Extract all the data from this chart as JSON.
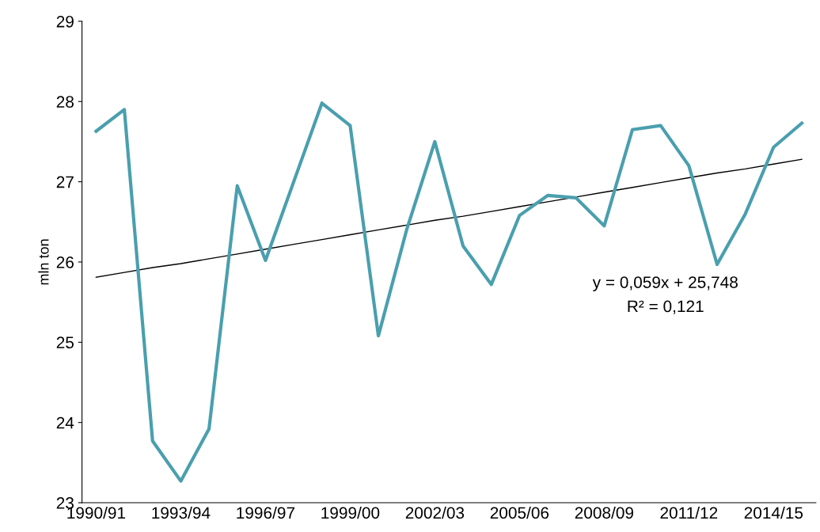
{
  "chart_data": {
    "type": "line",
    "ylabel": "mln ton",
    "categories": [
      "1990/91",
      null,
      null,
      "1993/94",
      null,
      null,
      "1996/97",
      null,
      null,
      "1999/00",
      null,
      null,
      "2002/03",
      null,
      null,
      "2005/06",
      null,
      null,
      "2008/09",
      null,
      null,
      "2011/12",
      null,
      null,
      "2014/15",
      null
    ],
    "series": [
      {
        "color": "#4a9fae",
        "values": [
          27.63,
          27.9,
          23.77,
          23.27,
          23.92,
          26.95,
          26.02,
          27.0,
          27.98,
          27.7,
          25.08,
          26.4,
          27.5,
          26.2,
          25.72,
          26.58,
          26.83,
          26.8,
          26.45,
          27.65,
          27.7,
          27.2,
          25.97,
          26.6,
          27.43,
          27.73
        ]
      },
      {
        "type": "line",
        "color": "#000000",
        "values": [
          25.81,
          25.87,
          25.93,
          25.98,
          26.04,
          26.1,
          26.16,
          26.22,
          26.28,
          26.34,
          26.4,
          26.46,
          26.52,
          26.57,
          26.63,
          26.69,
          26.75,
          26.81,
          26.87,
          26.93,
          26.99,
          27.05,
          27.11,
          27.16,
          27.22,
          27.28
        ]
      }
    ],
    "ylim": [
      23,
      29
    ],
    "yticks": [
      23,
      24,
      25,
      26,
      27,
      28,
      29
    ],
    "grid": false,
    "legend": false,
    "annotations": [
      "y = 0,059x + 25,748",
      "R² = 0,121"
    ]
  }
}
